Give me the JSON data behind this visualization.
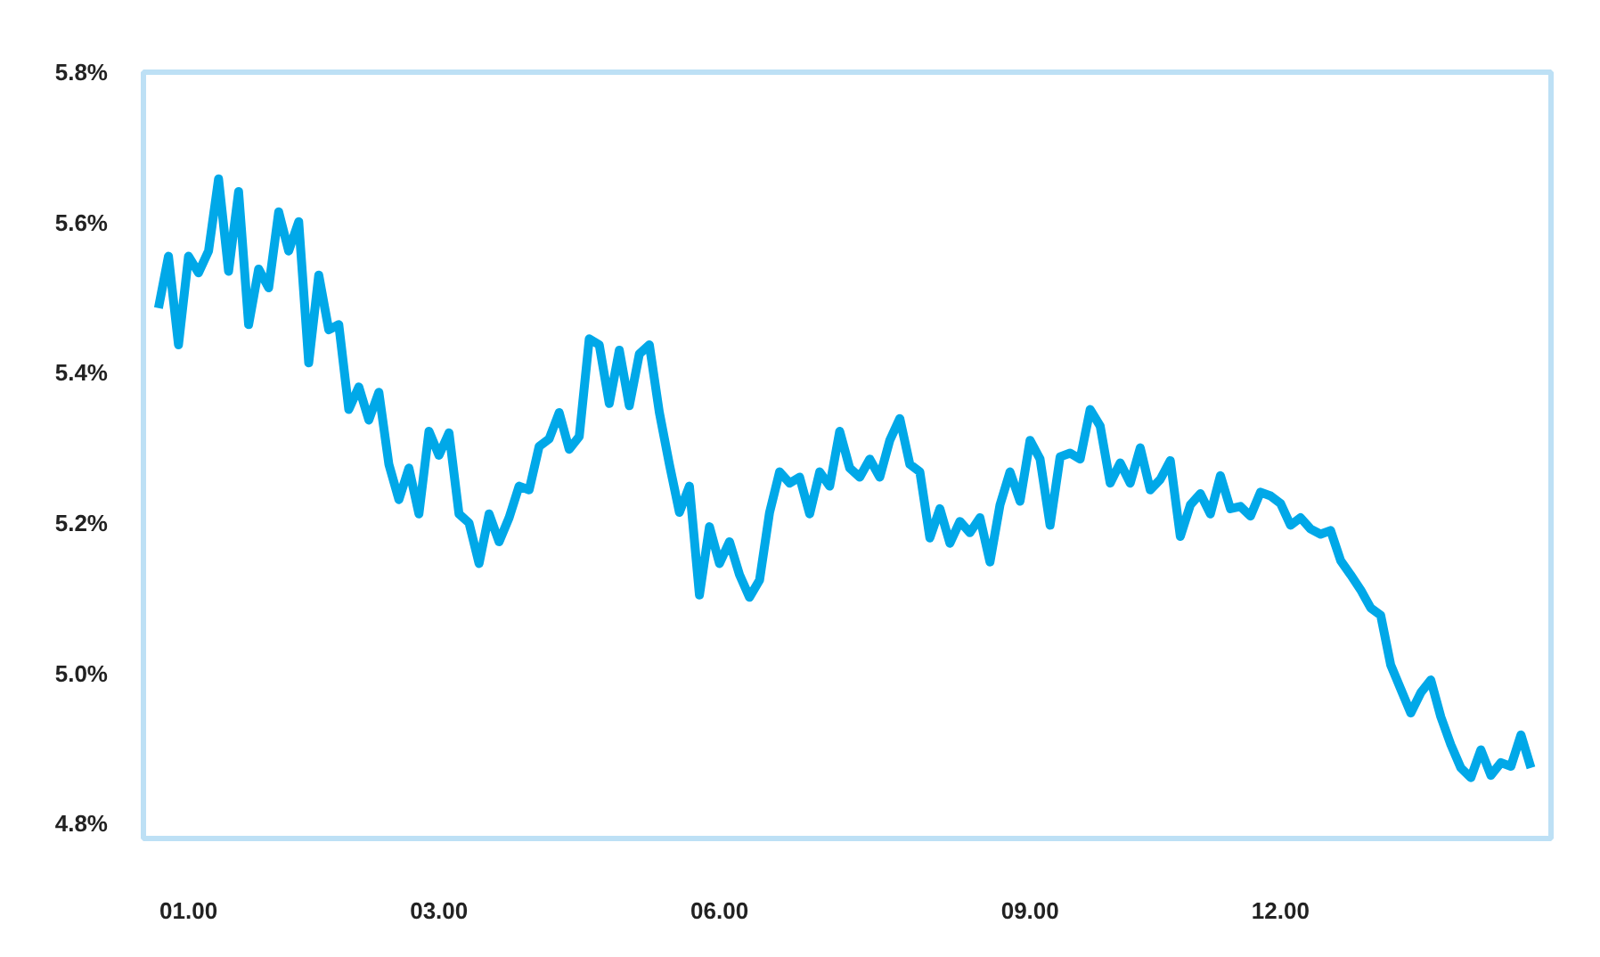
{
  "chart_data": {
    "type": "line",
    "categories": [
      null,
      null,
      null,
      "01.00",
      null,
      null,
      null,
      null,
      null,
      null,
      null,
      null,
      null,
      null,
      null,
      null,
      null,
      null,
      null,
      null,
      null,
      null,
      null,
      null,
      null,
      null,
      null,
      null,
      "03.00",
      null,
      null,
      null,
      null,
      null,
      null,
      null,
      null,
      null,
      null,
      null,
      null,
      null,
      null,
      null,
      null,
      null,
      null,
      null,
      null,
      null,
      null,
      null,
      null,
      null,
      null,
      null,
      "06.00",
      null,
      null,
      null,
      null,
      null,
      null,
      null,
      null,
      null,
      null,
      null,
      null,
      null,
      null,
      null,
      null,
      null,
      null,
      null,
      null,
      null,
      null,
      null,
      null,
      null,
      null,
      null,
      null,
      null,
      null,
      "09.00",
      null,
      null,
      null,
      null,
      null,
      null,
      null,
      null,
      null,
      null,
      null,
      null,
      null,
      null,
      null,
      null,
      null,
      null,
      null,
      null,
      null,
      null,
      null,
      null,
      "12.00",
      null,
      null,
      null,
      null,
      null,
      null,
      null,
      null,
      null,
      null,
      null,
      null,
      null,
      null,
      null,
      null,
      null,
      null,
      null,
      null,
      null,
      null,
      null,
      null,
      null
    ],
    "series": [
      {
        "color": "#00a8e8",
        "values": [
          5.486,
          5.555,
          5.437,
          5.555,
          5.533,
          5.562,
          5.658,
          5.535,
          5.641,
          5.464,
          5.538,
          5.513,
          5.614,
          5.562,
          5.601,
          5.413,
          5.53,
          5.457,
          5.464,
          5.351,
          5.381,
          5.337,
          5.374,
          5.278,
          5.231,
          5.273,
          5.212,
          5.322,
          5.29,
          5.32,
          5.212,
          5.2,
          5.146,
          5.212,
          5.175,
          5.207,
          5.249,
          5.244,
          5.302,
          5.312,
          5.347,
          5.298,
          5.315,
          5.445,
          5.437,
          5.359,
          5.43,
          5.356,
          5.425,
          5.437,
          5.347,
          5.278,
          5.214,
          5.249,
          5.104,
          5.195,
          5.146,
          5.175,
          5.131,
          5.101,
          5.124,
          5.214,
          5.268,
          5.253,
          5.261,
          5.212,
          5.268,
          5.249,
          5.322,
          5.273,
          5.261,
          5.285,
          5.261,
          5.31,
          5.339,
          5.278,
          5.268,
          5.18,
          5.219,
          5.173,
          5.202,
          5.187,
          5.207,
          5.148,
          5.224,
          5.268,
          5.229,
          5.31,
          5.285,
          5.197,
          5.288,
          5.293,
          5.285,
          5.351,
          5.329,
          5.253,
          5.28,
          5.253,
          5.3,
          5.244,
          5.258,
          5.283,
          5.182,
          5.224,
          5.239,
          5.212,
          5.263,
          5.219,
          5.222,
          5.209,
          5.241,
          5.236,
          5.226,
          5.197,
          5.207,
          5.192,
          5.185,
          5.19,
          5.15,
          5.131,
          5.111,
          5.087,
          5.077,
          5.011,
          4.979,
          4.947,
          4.974,
          4.991,
          4.942,
          4.905,
          4.874,
          4.861,
          4.898,
          4.864,
          4.881,
          4.876,
          4.918,
          4.874
        ]
      }
    ],
    "ylim": [
      4.78,
      5.8
    ],
    "yticks": [
      {
        "value": 4.8,
        "label": "4.8%"
      },
      {
        "value": 5.0,
        "label": "5.0%"
      },
      {
        "value": 5.2,
        "label": "5.2%"
      },
      {
        "value": 5.4,
        "label": "5.4%"
      },
      {
        "value": 5.6,
        "label": "5.6%"
      },
      {
        "value": 5.8,
        "label": "5.8%"
      }
    ],
    "grid": false,
    "marker": "none",
    "line_style": "solid"
  }
}
